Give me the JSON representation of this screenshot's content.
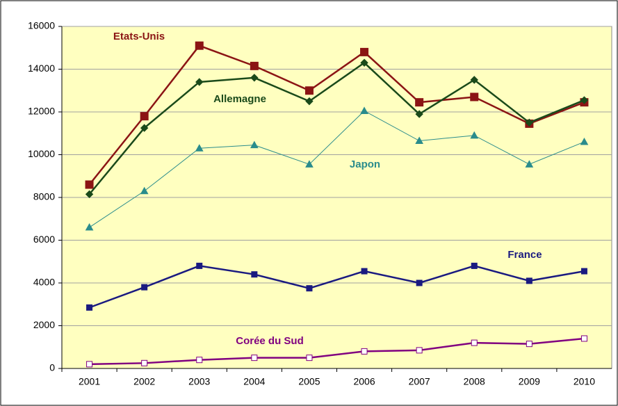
{
  "chart_data": {
    "type": "line",
    "categories": [
      "2001",
      "2002",
      "2003",
      "2004",
      "2005",
      "2006",
      "2007",
      "2008",
      "2009",
      "2010"
    ],
    "series": [
      {
        "name": "Etats-Unis",
        "color": "#8b1414",
        "marker": "square",
        "values": [
          8600,
          11800,
          15100,
          14150,
          13000,
          14800,
          12450,
          12700,
          11450,
          12450
        ]
      },
      {
        "name": "Allemagne",
        "color": "#1a4a1a",
        "marker": "diamond",
        "values": [
          8150,
          11250,
          13400,
          13600,
          12500,
          14300,
          11900,
          13500,
          11500,
          12550
        ]
      },
      {
        "name": "Japon",
        "color": "#2a8c8c",
        "marker": "triangle",
        "values": [
          6600,
          8300,
          10300,
          10450,
          9550,
          12050,
          10650,
          10900,
          9550,
          10600
        ]
      },
      {
        "name": "France",
        "color": "#1a1a80",
        "marker": "square",
        "values": [
          2850,
          3800,
          4800,
          4400,
          3750,
          4550,
          4000,
          4800,
          4100,
          4550
        ]
      },
      {
        "name": "Corée du Sud",
        "color": "#800080",
        "marker": "open-square",
        "values": [
          200,
          250,
          400,
          500,
          500,
          800,
          850,
          1200,
          1150,
          1400
        ]
      }
    ],
    "ylim": [
      0,
      16000
    ],
    "yticks": [
      0,
      2000,
      4000,
      6000,
      8000,
      10000,
      12000,
      14000,
      16000
    ],
    "grid": true
  }
}
